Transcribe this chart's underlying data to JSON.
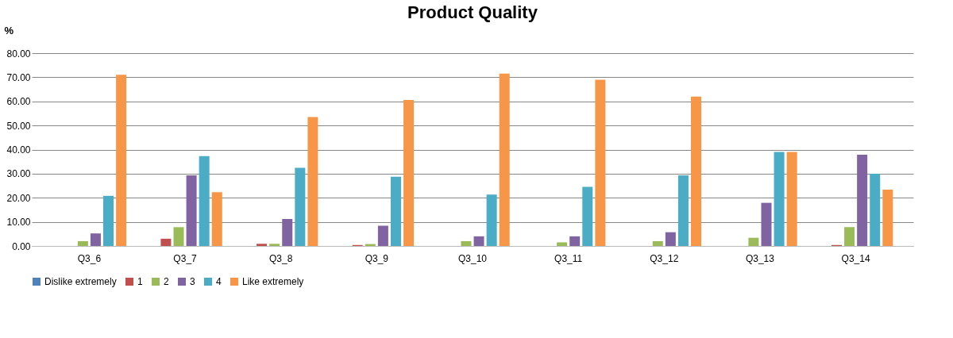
{
  "chart_data": {
    "type": "bar",
    "title": "Product Quality",
    "ylabel": "%",
    "categories": [
      "Q3_6",
      "Q3_7",
      "Q3_8",
      "Q3_9",
      "Q3_10",
      "Q3_11",
      "Q3_12",
      "Q3_13",
      "Q3_14"
    ],
    "series": [
      {
        "name": "Dislike extremely",
        "color": "#4f81bd",
        "values": [
          0,
          0,
          0,
          0,
          0,
          0,
          0,
          0,
          0
        ]
      },
      {
        "name": "1",
        "color": "#c0504d",
        "values": [
          0,
          3.0,
          0.9,
          0.4,
          0,
          0,
          0,
          0,
          0.4
        ]
      },
      {
        "name": "2",
        "color": "#9bbb59",
        "values": [
          2.0,
          7.8,
          0.9,
          0.8,
          2.0,
          1.5,
          2.0,
          3.4,
          7.8
        ]
      },
      {
        "name": "3",
        "color": "#8064a2",
        "values": [
          5.2,
          29.3,
          11.2,
          8.4,
          4.0,
          4.0,
          5.7,
          17.9,
          37.9
        ]
      },
      {
        "name": "4",
        "color": "#4bacc6",
        "values": [
          20.8,
          37.3,
          32.4,
          28.7,
          21.3,
          24.5,
          29.3,
          39.0,
          30.0
        ]
      },
      {
        "name": "Like extremely",
        "color": "#f79646",
        "values": [
          71.0,
          22.3,
          53.5,
          60.6,
          71.5,
          69.0,
          62.0,
          39.0,
          23.4
        ]
      }
    ],
    "ylim": [
      0,
      80
    ],
    "yticks": [
      {
        "value": 0,
        "label": "0.00"
      },
      {
        "value": 10,
        "label": "10.00"
      },
      {
        "value": 20,
        "label": "20.00"
      },
      {
        "value": 30,
        "label": "30.00"
      },
      {
        "value": 40,
        "label": "40.00"
      },
      {
        "value": 50,
        "label": "50.00"
      },
      {
        "value": 60,
        "label": "60.00"
      },
      {
        "value": 70,
        "label": "70.00"
      },
      {
        "value": 80,
        "label": "80.00"
      }
    ],
    "grid": "y",
    "legend": "bottom"
  }
}
